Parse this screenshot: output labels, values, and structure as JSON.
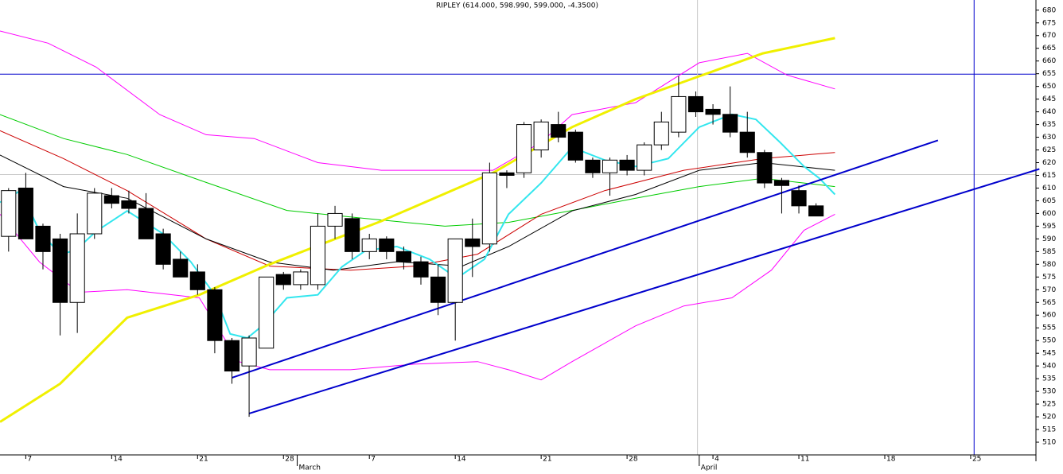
{
  "chart_data": {
    "type": "candlestick",
    "title": "RIPLEY (614.000, 598.990, 599.000, -4.3500)",
    "x": [
      0,
      1,
      2,
      3,
      4,
      5,
      6,
      7,
      8,
      9,
      10,
      11,
      12,
      13,
      14,
      15,
      16,
      17,
      18,
      19,
      20,
      21,
      22,
      23,
      24,
      25,
      26,
      27,
      28,
      29,
      30,
      31,
      32,
      33,
      34,
      35,
      36,
      37,
      38,
      39,
      40,
      41,
      42,
      43,
      44,
      45,
      46,
      47
    ],
    "open": [
      591,
      610,
      595,
      590,
      565,
      592,
      607,
      605,
      602,
      592,
      582,
      577,
      570,
      550,
      540,
      547,
      576,
      572,
      572,
      595,
      598,
      585,
      590,
      585,
      581,
      575,
      565,
      590,
      588,
      616,
      616,
      625,
      635,
      632,
      621,
      616,
      621,
      617,
      627,
      632,
      646,
      641,
      639,
      632,
      624,
      613,
      609,
      603
    ],
    "high": [
      610,
      616,
      596,
      592,
      600,
      610,
      610,
      609,
      608,
      594,
      585,
      580,
      571,
      551,
      552,
      575,
      577,
      578,
      600,
      603,
      600,
      592,
      591,
      587,
      583,
      580,
      590,
      598,
      620,
      617,
      636,
      637,
      640,
      633,
      622,
      622,
      623,
      628,
      640,
      654,
      648,
      643,
      650,
      640,
      625,
      614,
      611,
      604
    ],
    "low": [
      585,
      590,
      578,
      552,
      553,
      590,
      602,
      600,
      590,
      578,
      575,
      568,
      545,
      533,
      520,
      547,
      570,
      570,
      570,
      590,
      582,
      582,
      582,
      578,
      572,
      560,
      550,
      575,
      585,
      610,
      614,
      622,
      628,
      620,
      614,
      607,
      615,
      615,
      625,
      630,
      638,
      635,
      630,
      622,
      610,
      600,
      600,
      598.99
    ],
    "close": [
      609,
      590,
      585,
      565,
      592,
      608,
      604,
      602,
      590,
      580,
      575,
      570,
      550,
      538,
      551,
      575,
      572,
      577,
      595,
      600,
      585,
      590,
      585,
      581,
      575,
      565,
      590,
      587,
      616,
      615,
      635,
      636,
      630,
      621,
      616,
      621,
      617,
      627,
      636,
      646,
      640,
      639,
      632,
      624,
      612,
      611,
      603,
      599
    ],
    "up_color": "#ffffff",
    "down_color": "#000000",
    "xlim": [
      -0.5,
      59.8
    ],
    "ylim": [
      505,
      684
    ],
    "yticks": [
      510,
      515,
      520,
      525,
      530,
      535,
      540,
      545,
      550,
      555,
      560,
      565,
      570,
      575,
      580,
      585,
      590,
      595,
      600,
      605,
      610,
      615,
      620,
      625,
      630,
      635,
      640,
      645,
      650,
      655,
      660,
      665,
      670,
      675,
      680
    ],
    "xticks": [
      {
        "value": 1,
        "label": "7"
      },
      {
        "value": 6,
        "label": "14"
      },
      {
        "value": 11,
        "label": "21"
      },
      {
        "value": 16,
        "label": "28"
      },
      {
        "value": 21,
        "label": "7"
      },
      {
        "value": 26,
        "label": "14"
      },
      {
        "value": 31,
        "label": "21"
      },
      {
        "value": 36,
        "label": "28"
      },
      {
        "value": 41,
        "label": "4"
      },
      {
        "value": 46,
        "label": "11"
      },
      {
        "value": 51,
        "label": "18"
      },
      {
        "value": 56,
        "label": "25"
      }
    ],
    "month_ticks": [
      {
        "value": 16.8,
        "label": "March"
      },
      {
        "value": 40.2,
        "label": "April"
      }
    ],
    "overlays": [
      {
        "color": "#ff00ff",
        "width": 1,
        "x": [
          -0.5,
          2.3,
          5.1,
          8.8,
          11.5,
          14.3,
          18.0,
          21.7,
          25.4,
          28.2,
          31.0,
          32.8,
          36.5,
          40.2,
          43.0,
          45.3,
          48.1
        ],
        "values": [
          671.8,
          667,
          657.6,
          638.9,
          631,
          629.5,
          620,
          617,
          617,
          617,
          628,
          638.9,
          643.6,
          659.3,
          663,
          654.5,
          649
        ]
      },
      {
        "color": "#ff00ff",
        "width": 1,
        "x": [
          -0.5,
          1.8,
          4.1,
          6.9,
          11.1,
          13.4,
          15.2,
          19.9,
          23.6,
          27.3,
          29.1,
          31.0,
          32.8,
          36.5,
          39.3,
          42.1,
          44.4,
          46.3,
          48.1
        ],
        "values": [
          599.7,
          580.9,
          569,
          570,
          566.8,
          541.7,
          538.5,
          538.5,
          540.7,
          541.7,
          538.5,
          534.5,
          541.7,
          555.8,
          563.6,
          566.8,
          577.7,
          593.4,
          599.7
        ]
      },
      {
        "color": "#00cc00",
        "width": 1,
        "x": [
          -0.5,
          3.2,
          6.9,
          11.5,
          16.2,
          20.8,
          25.4,
          29.1,
          32.8,
          36.5,
          40.2,
          43.9,
          48.1
        ],
        "values": [
          638.9,
          629.5,
          623.2,
          612.2,
          601.2,
          598,
          595,
          596.5,
          601.2,
          606,
          610.6,
          613.8,
          610.6
        ]
      },
      {
        "color": "#cc0000",
        "width": 1,
        "x": [
          -0.5,
          3.2,
          6.9,
          11.5,
          15.2,
          19.9,
          23.6,
          27.3,
          31.0,
          34.7,
          39.3,
          43.9,
          48.1
        ],
        "values": [
          632.6,
          621.6,
          609,
          590,
          579.3,
          577.7,
          579.3,
          584,
          599.7,
          609,
          617,
          621.6,
          624
        ]
      },
      {
        "color": "#000000",
        "width": 1,
        "x": [
          -0.5,
          3.2,
          6.9,
          11.5,
          15.2,
          18.9,
          22.6,
          26.4,
          29.1,
          32.8,
          36.5,
          40.2,
          43.9,
          48.1
        ],
        "values": [
          623,
          610.6,
          606,
          590,
          580.9,
          577.7,
          581,
          579.3,
          587,
          601,
          607.5,
          617,
          620,
          617
        ]
      },
      {
        "color": "#f0f000",
        "width": 3,
        "x": [
          -0.5,
          3.0,
          6.9,
          11.1,
          15.2,
          21.7,
          28.2,
          32.8,
          36.5,
          40.2,
          43.9,
          48.1
        ],
        "values": [
          518,
          533,
          559,
          568,
          580,
          597,
          616,
          634,
          645,
          654,
          663,
          669
        ]
      },
      {
        "color": "#33e6ee",
        "width": 2,
        "x": [
          -0.5,
          0.7,
          1.8,
          3.0,
          3.9,
          5.1,
          6.9,
          9.0,
          10.6,
          12.0,
          12.9,
          13.9,
          14.8,
          16.2,
          18.0,
          19.4,
          20.8,
          22.6,
          24.5,
          26.1,
          27.7,
          29.1,
          31.0,
          32.8,
          34.7,
          36.5,
          38.4,
          40.2,
          42.1,
          43.5,
          44.9,
          46.3,
          47.2,
          48.1
        ],
        "values": [
          604.4,
          609,
          593,
          584,
          585.5,
          593,
          601,
          592,
          581,
          568,
          552.6,
          551,
          556,
          566.8,
          568,
          579,
          585.5,
          587,
          582,
          574.6,
          582,
          599.7,
          612,
          626,
          621,
          618.5,
          621.6,
          634,
          639,
          637,
          628,
          618.5,
          613.8,
          607.5
        ]
      }
    ],
    "hlines": [
      {
        "color": "#0000cc",
        "value": 654.8
      },
      {
        "color": "#c8c8c8",
        "value": 615.3
      }
    ],
    "vlines": [
      {
        "color": "#0000cc",
        "value": 56.2
      },
      {
        "color": "#c8c8c8",
        "value": 40.1
      }
    ],
    "trendlines": [
      {
        "color": "#0000cc",
        "x": [
          13.0,
          54.1
        ],
        "values": [
          535.4,
          628.8
        ]
      },
      {
        "color": "#0000cc",
        "x": [
          14.0,
          60.0
        ],
        "values": [
          521.3,
          617.5
        ]
      }
    ]
  }
}
